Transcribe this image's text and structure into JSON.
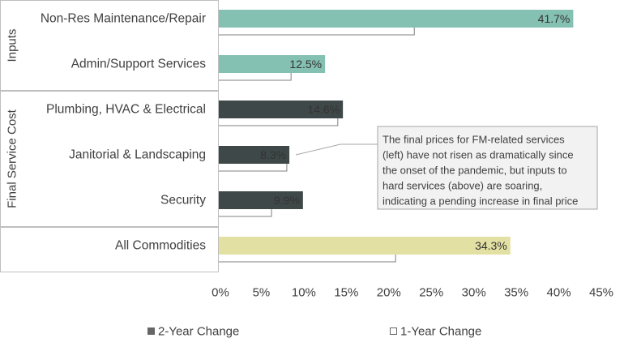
{
  "colors": {
    "inputs": "#85C1B2",
    "final_service": "#3F4848",
    "all_commodities": "#E3E0A3",
    "one_year_outline": "#808080",
    "gridline": "#d9d9d9",
    "annotation_border": "#a6a6a6",
    "annotation_bg": "#f2f2f2"
  },
  "legend": {
    "two_year": {
      "marker": "■",
      "label": "2-Year Change"
    },
    "one_year": {
      "marker": "□",
      "label": "1-Year Change"
    }
  },
  "annotation": {
    "lines": [
      "The final prices for FM-related services",
      "(left) have not risen as dramatically since",
      "the onset of the pandemic, but inputs to",
      "hard services (above) are soaring,",
      "indicating a pending increase in final price"
    ]
  },
  "chart_data": {
    "type": "bar",
    "orientation": "horizontal",
    "groups": [
      {
        "label": "Inputs",
        "categories": [
          "Non-Res Maintenance/Repair",
          "Admin/Support Services"
        ]
      },
      {
        "label": "Final Service Cost",
        "categories": [
          "Plumbing, HVAC & Electrical",
          "Janitorial & Landscaping",
          "Security"
        ]
      },
      {
        "label": "",
        "categories": [
          "All Commodities"
        ]
      }
    ],
    "categories": [
      "Non-Res Maintenance/Repair",
      "Admin/Support Services",
      "Plumbing, HVAC & Electrical",
      "Janitorial & Landscaping",
      "Security",
      "All Commodities"
    ],
    "series": [
      {
        "name": "2-Year Change",
        "values": [
          41.7,
          12.5,
          14.6,
          8.3,
          9.9,
          34.3
        ],
        "labels": [
          "41.7%",
          "12.5%",
          "14.6%",
          "8.3%",
          "9.9%",
          "34.3%"
        ],
        "color_keys": [
          "inputs",
          "inputs",
          "final_service",
          "final_service",
          "final_service",
          "all_commodities"
        ]
      },
      {
        "name": "1-Year Change",
        "values": [
          23.0,
          8.5,
          14.0,
          8.0,
          6.2,
          20.8
        ]
      }
    ],
    "xlim": [
      0,
      45
    ],
    "xticks": [
      0,
      5,
      10,
      15,
      20,
      25,
      30,
      35,
      40,
      45
    ],
    "xtick_labels": [
      "0%",
      "5%",
      "10%",
      "15%",
      "20%",
      "25%",
      "30%",
      "35%",
      "40%",
      "45%"
    ],
    "grid": false,
    "legend_position": "bottom"
  }
}
